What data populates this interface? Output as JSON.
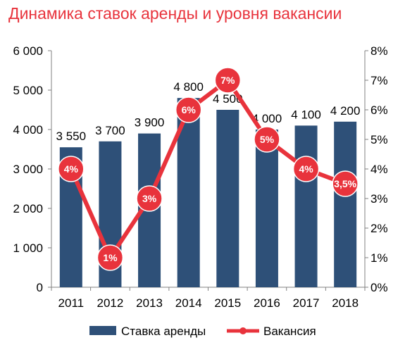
{
  "chart_data": {
    "type": "bar",
    "title": "Динамика ставок аренды и уровня вакансии",
    "categories": [
      "2011",
      "2012",
      "2013",
      "2014",
      "2015",
      "2016",
      "2017",
      "2018"
    ],
    "series": [
      {
        "name": "Ставка аренды",
        "type": "bar",
        "axis": "left",
        "values": [
          3550,
          3700,
          3900,
          4800,
          4500,
          4000,
          4100,
          4200
        ],
        "labels": [
          "3 550",
          "3 700",
          "3 900",
          "4 800",
          "4 500",
          "4 000",
          "4 100",
          "4 200"
        ],
        "color": "#2e5078"
      },
      {
        "name": "Вакансия",
        "type": "line",
        "axis": "right",
        "values": [
          4,
          1,
          3,
          6,
          7,
          5,
          4,
          3.5
        ],
        "labels": [
          "4%",
          "1%",
          "3%",
          "6%",
          "7%",
          "5%",
          "4%",
          "3,5%"
        ],
        "color": "#e8333c"
      }
    ],
    "y_left": {
      "range": [
        0,
        6000
      ],
      "ticks": [
        "0",
        "1 000",
        "2 000",
        "3 000",
        "4 000",
        "5 000",
        "6 000"
      ]
    },
    "y_right": {
      "range": [
        0,
        8
      ],
      "ticks": [
        "0%",
        "1%",
        "2%",
        "3%",
        "4%",
        "5%",
        "6%",
        "7%",
        "8%"
      ]
    },
    "grid": false,
    "legend_position": "bottom"
  },
  "colors": {
    "title": "#e8333c",
    "bar": "#2e5078",
    "line": "#e8333c",
    "axis": "#808080"
  }
}
